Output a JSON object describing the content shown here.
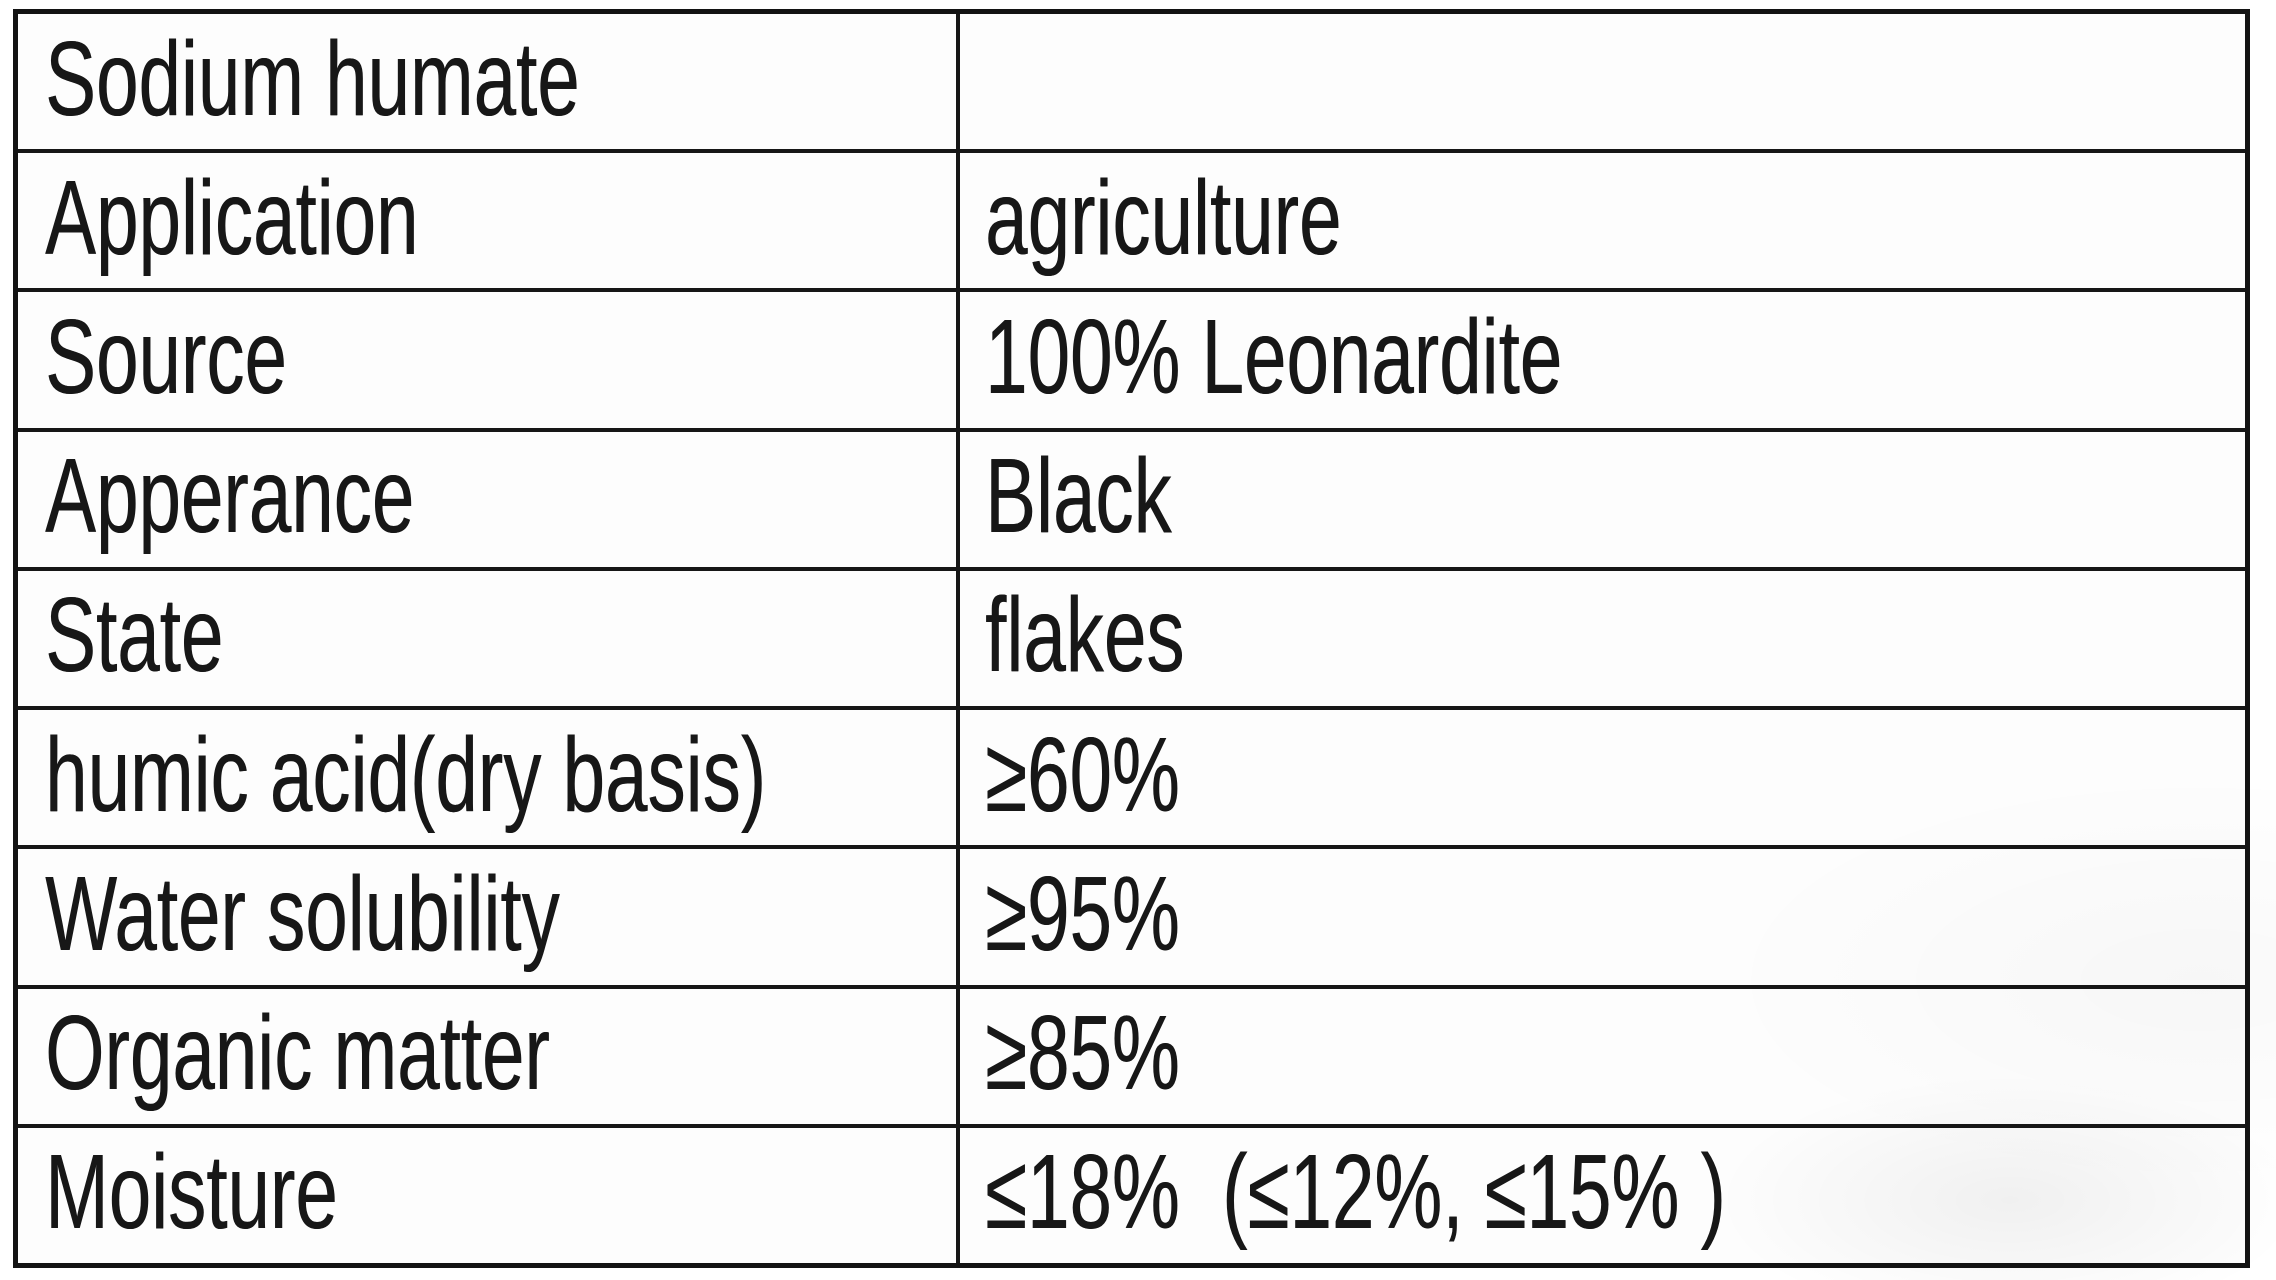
{
  "document": {
    "type": "product-specification-table",
    "product_name": "Sodium humate"
  },
  "colors": {
    "border": "#131313",
    "cell_background": "#fdfdfd",
    "text": "#171717",
    "page_background": "#ffffff"
  },
  "table": {
    "columns": [
      "parameter",
      "value"
    ],
    "rows": [
      {
        "label": "Sodium humate",
        "value": ""
      },
      {
        "label": "Application",
        "value": "agriculture"
      },
      {
        "label": "Source",
        "value": "100% Leonardite"
      },
      {
        "label": "Apperance",
        "value": "Black"
      },
      {
        "label": "State",
        "value": "flakes"
      },
      {
        "label": "humic acid(dry basis)",
        "value": "≥60%"
      },
      {
        "label": "Water solubility",
        "value": "≥95%"
      },
      {
        "label": "Organic matter",
        "value": "≥85%"
      },
      {
        "label": "Moisture",
        "value": "≤18%  (≤12%, ≤15% )"
      }
    ]
  }
}
